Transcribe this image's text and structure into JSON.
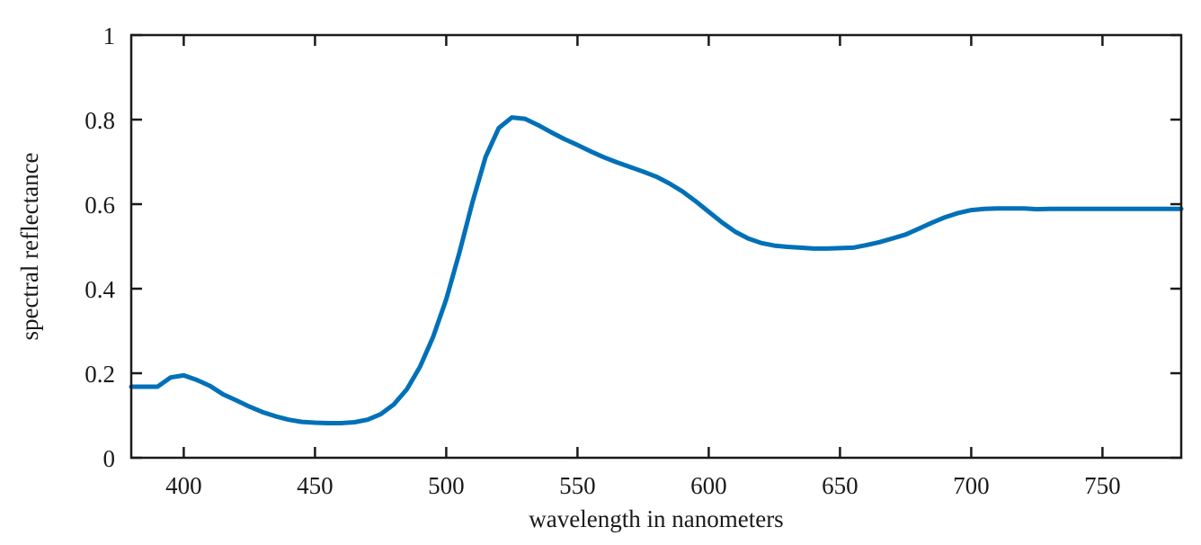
{
  "chart_data": {
    "type": "line",
    "title": "",
    "xlabel": "wavelength in nanometers",
    "ylabel": "spectral reflectance",
    "xlim": [
      380,
      780
    ],
    "ylim": [
      0,
      1
    ],
    "x_ticks": [
      400,
      450,
      500,
      550,
      600,
      650,
      700,
      750
    ],
    "y_ticks": [
      0,
      0.2,
      0.4,
      0.6,
      0.8,
      1
    ],
    "y_tick_labels": [
      "0",
      "0.2",
      "0.4",
      "0.6",
      "0.8",
      "1"
    ],
    "grid": false,
    "line_color": "#0070b8",
    "series": [
      {
        "x": [
          380,
          390,
          395,
          400,
          405,
          410,
          415,
          420,
          425,
          430,
          435,
          440,
          445,
          450,
          455,
          460,
          465,
          470,
          475,
          480,
          485,
          490,
          495,
          500,
          505,
          510,
          515,
          520,
          525,
          530,
          535,
          540,
          545,
          550,
          555,
          560,
          565,
          570,
          575,
          580,
          585,
          590,
          595,
          600,
          605,
          610,
          615,
          620,
          625,
          630,
          635,
          640,
          645,
          650,
          655,
          660,
          665,
          670,
          675,
          680,
          685,
          690,
          695,
          700,
          705,
          710,
          715,
          720,
          725,
          730,
          740,
          750,
          760,
          770,
          780
        ],
        "y": [
          0.168,
          0.168,
          0.19,
          0.195,
          0.184,
          0.17,
          0.15,
          0.136,
          0.121,
          0.108,
          0.098,
          0.09,
          0.085,
          0.083,
          0.082,
          0.082,
          0.084,
          0.09,
          0.103,
          0.126,
          0.162,
          0.215,
          0.286,
          0.375,
          0.485,
          0.605,
          0.712,
          0.78,
          0.805,
          0.802,
          0.787,
          0.77,
          0.754,
          0.74,
          0.725,
          0.711,
          0.699,
          0.688,
          0.677,
          0.665,
          0.649,
          0.63,
          0.607,
          0.582,
          0.557,
          0.535,
          0.519,
          0.508,
          0.502,
          0.499,
          0.497,
          0.495,
          0.495,
          0.496,
          0.497,
          0.503,
          0.51,
          0.519,
          0.528,
          0.542,
          0.556,
          0.569,
          0.579,
          0.586,
          0.589,
          0.59,
          0.59,
          0.59,
          0.588,
          0.589,
          0.589,
          0.589,
          0.589,
          0.589,
          0.589
        ]
      }
    ]
  }
}
